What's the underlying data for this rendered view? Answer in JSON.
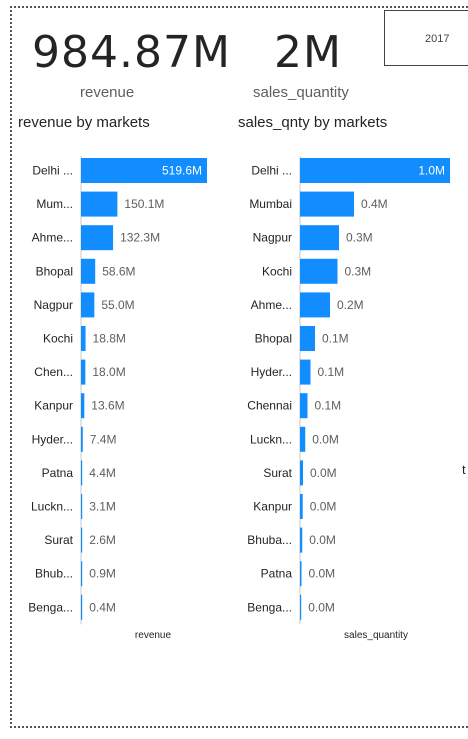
{
  "kpis": {
    "revenue_value": "984.87M",
    "revenue_label": "revenue",
    "quantity_value": "2M",
    "quantity_label": "sales_quantity"
  },
  "slicer": {
    "year": "2017"
  },
  "edge_text": "t",
  "colors": {
    "bar": "#118DFF",
    "axis": "#c8c8c8",
    "text": "#252423",
    "muted": "#605e5c"
  },
  "chart_data": [
    {
      "type": "bar",
      "orientation": "horizontal",
      "title": "revenue by markets",
      "xlabel": "revenue",
      "ylabel": "",
      "categories": [
        "Delhi ...",
        "Mum...",
        "Ahme...",
        "Bhopal",
        "Nagpur",
        "Kochi",
        "Chen...",
        "Kanpur",
        "Hyder...",
        "Patna",
        "Luckn...",
        "Surat",
        "Bhub...",
        "Benga..."
      ],
      "values": [
        519.6,
        150.1,
        132.3,
        58.6,
        55.0,
        18.8,
        18.0,
        13.6,
        7.4,
        4.4,
        3.1,
        2.6,
        0.9,
        0.4
      ],
      "data_labels": [
        "519.6M",
        "150.1M",
        "132.3M",
        "58.6M",
        "55.0M",
        "18.8M",
        "18.0M",
        "13.6M",
        "7.4M",
        "4.4M",
        "3.1M",
        "2.6M",
        "0.9M",
        "0.4M"
      ],
      "unit": "M",
      "xlim": [
        0,
        519.6
      ],
      "grid": false,
      "legend": "none"
    },
    {
      "type": "bar",
      "orientation": "horizontal",
      "title": "sales_qnty by markets",
      "xlabel": "sales_quantity",
      "ylabel": "",
      "categories": [
        "Delhi ...",
        "Mumbai",
        "Nagpur",
        "Kochi",
        "Ahme...",
        "Bhopal",
        "Hyder...",
        "Chennai",
        "Luckn...",
        "Surat",
        "Kanpur",
        "Bhuba...",
        "Patna",
        "Benga..."
      ],
      "values": [
        1.0,
        0.36,
        0.26,
        0.25,
        0.2,
        0.1,
        0.07,
        0.05,
        0.035,
        0.02,
        0.018,
        0.015,
        0.01,
        0.008
      ],
      "data_labels": [
        "1.0M",
        "0.4M",
        "0.3M",
        "0.3M",
        "0.2M",
        "0.1M",
        "0.1M",
        "0.1M",
        "0.0M",
        "0.0M",
        "0.0M",
        "0.0M",
        "0.0M",
        "0.0M"
      ],
      "unit": "M",
      "xlim": [
        0,
        1.0
      ],
      "grid": false,
      "legend": "none"
    }
  ]
}
